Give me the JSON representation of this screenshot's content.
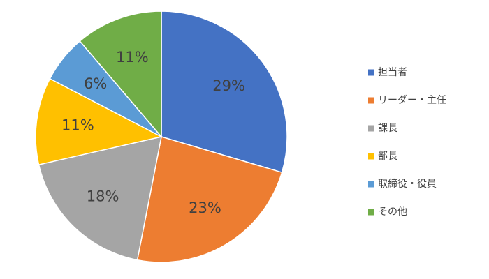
{
  "chart_data": {
    "type": "pie",
    "title": "",
    "categories": [
      "担当者",
      "リーダー・主任",
      "課長",
      "部長",
      "取締役・役員",
      "その他"
    ],
    "values": [
      29,
      23,
      18,
      11,
      6,
      11
    ],
    "labels": [
      "29%",
      "23%",
      "18%",
      "11%",
      "6%",
      "11%"
    ],
    "colors": [
      "#4472C4",
      "#ED7D31",
      "#A5A5A5",
      "#FFC000",
      "#5B9BD5",
      "#70AD47"
    ],
    "start_angle_deg": 0,
    "direction": "clockwise",
    "legend_position": "right"
  }
}
